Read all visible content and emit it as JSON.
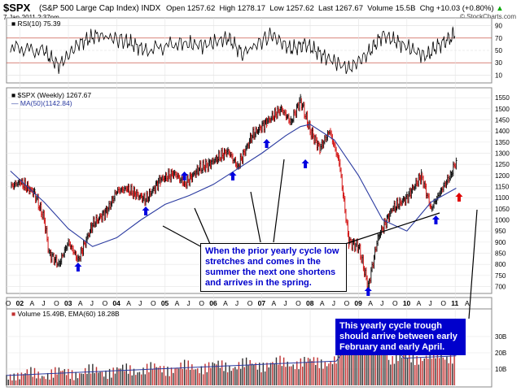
{
  "header": {
    "symbol": "$SPX",
    "name": "(S&P 500 Large Cap Index)",
    "exchange": "INDX",
    "datetime": "7-Jan-2011 2:37pm",
    "source": "© StockCharts.com",
    "open_label": "Open",
    "open": "1257.62",
    "high_label": "High",
    "high": "1278.17",
    "low_label": "Low",
    "low": "1257.62",
    "last_label": "Last",
    "last": "1267.67",
    "volume_label": "Volume",
    "volume": "15.5B",
    "chg_label": "Chg",
    "chg": "+10.03 (+0.80%)",
    "chg_arrow": "▲"
  },
  "chart_data": [
    {
      "type": "line",
      "panel": "indicator",
      "title": "RSI(10) 75.39",
      "legend": [
        {
          "name": "RSI(10)",
          "value": "75.39"
        }
      ],
      "y_ticks": [
        10,
        30,
        50,
        70,
        90
      ],
      "ylim": [
        0,
        100
      ],
      "overbought": 70,
      "oversold": 30,
      "x": [
        "2001.8",
        "2002.5",
        "2002.8",
        "2003.2",
        "2003.6",
        "2004.2",
        "2004.6",
        "2005.3",
        "2005.8",
        "2006.3",
        "2006.6",
        "2007.2",
        "2007.6",
        "2007.9",
        "2008.3",
        "2008.8",
        "2009.2",
        "2009.5",
        "2009.9",
        "2010.4",
        "2010.6",
        "2010.9",
        "2011.0"
      ],
      "values": [
        55,
        48,
        25,
        60,
        75,
        65,
        50,
        62,
        58,
        70,
        45,
        75,
        52,
        60,
        40,
        20,
        45,
        75,
        60,
        40,
        55,
        70,
        75
      ]
    },
    {
      "type": "line",
      "panel": "price",
      "title": "$SPX (Weekly) 1267.67",
      "legend": [
        {
          "name": "$SPX (Weekly)",
          "value": "1267.67",
          "color": "#000000"
        },
        {
          "name": "MA(50)",
          "value": "1142.84",
          "color": "#2a3aa0"
        }
      ],
      "y_ticks": [
        700,
        750,
        800,
        850,
        900,
        950,
        1000,
        1050,
        1100,
        1150,
        1200,
        1250,
        1300,
        1350,
        1400,
        1450,
        1500,
        1550
      ],
      "ylim": [
        680,
        1580
      ],
      "x_tick_labels": [
        "O",
        "02",
        "A",
        "J",
        "O",
        "03",
        "A",
        "J",
        "O",
        "04",
        "A",
        "J",
        "O",
        "05",
        "A",
        "J",
        "O",
        "06",
        "A",
        "J",
        "O",
        "07",
        "A",
        "J",
        "O",
        "08",
        "A",
        "J",
        "O",
        "09",
        "A",
        "J",
        "O",
        "10",
        "A",
        "J",
        "O",
        "11",
        "A"
      ],
      "series": [
        {
          "name": "$SPX (Weekly)",
          "x": [
            2001.8,
            2002.0,
            2002.3,
            2002.5,
            2002.6,
            2002.8,
            2003.0,
            2003.2,
            2003.5,
            2003.8,
            2004.0,
            2004.2,
            2004.6,
            2004.9,
            2005.2,
            2005.4,
            2005.7,
            2005.9,
            2006.3,
            2006.5,
            2006.8,
            2007.1,
            2007.4,
            2007.6,
            2007.8,
            2008.0,
            2008.2,
            2008.4,
            2008.6,
            2008.8,
            2009.0,
            2009.2,
            2009.4,
            2009.7,
            2010.0,
            2010.3,
            2010.5,
            2010.7,
            2010.9,
            2011.02
          ],
          "values": [
            1150,
            1170,
            1120,
            1000,
            850,
            800,
            900,
            820,
            980,
            1040,
            1130,
            1140,
            1090,
            1180,
            1210,
            1160,
            1230,
            1250,
            1310,
            1240,
            1380,
            1440,
            1500,
            1440,
            1540,
            1400,
            1320,
            1400,
            1260,
            900,
            880,
            700,
            920,
            1050,
            1100,
            1200,
            1050,
            1130,
            1200,
            1267.67
          ]
        },
        {
          "name": "MA(50)",
          "x": [
            2001.8,
            2002.5,
            2003.0,
            2003.5,
            2004.0,
            2004.5,
            2005.0,
            2005.5,
            2006.0,
            2006.5,
            2007.0,
            2007.5,
            2007.8,
            2008.0,
            2008.5,
            2009.0,
            2009.5,
            2010.0,
            2010.5,
            2011.02
          ],
          "values": [
            1220,
            1080,
            960,
            880,
            920,
            1000,
            1070,
            1110,
            1160,
            1230,
            1300,
            1380,
            1420,
            1430,
            1360,
            1200,
            1000,
            950,
            1080,
            1142.84
          ]
        }
      ],
      "markers": {
        "blue_up_arrows_at": [
          2003.2,
          2004.6,
          2005.4,
          2006.4,
          2007.1,
          2007.9,
          2009.2,
          2010.6
        ],
        "red_up_arrow_at": 2011.08
      }
    },
    {
      "type": "bar",
      "panel": "volume",
      "title": "Volume 15.49B, EMA(60) 18.28B",
      "legend": [
        {
          "name": "Volume",
          "value": "15.49B"
        },
        {
          "name": "EMA(60)",
          "value": "18.28B"
        }
      ],
      "y_ticks": [
        "10B",
        "20B",
        "30B"
      ],
      "ylim": [
        0,
        40
      ]
    }
  ],
  "annotations": {
    "summer_note": "When the prior yearly cycle low stretches and comes in the summer the next one shortens and arrives in the spring.",
    "trough_note": "This yearly cycle trough should arrive between early February and early April."
  }
}
